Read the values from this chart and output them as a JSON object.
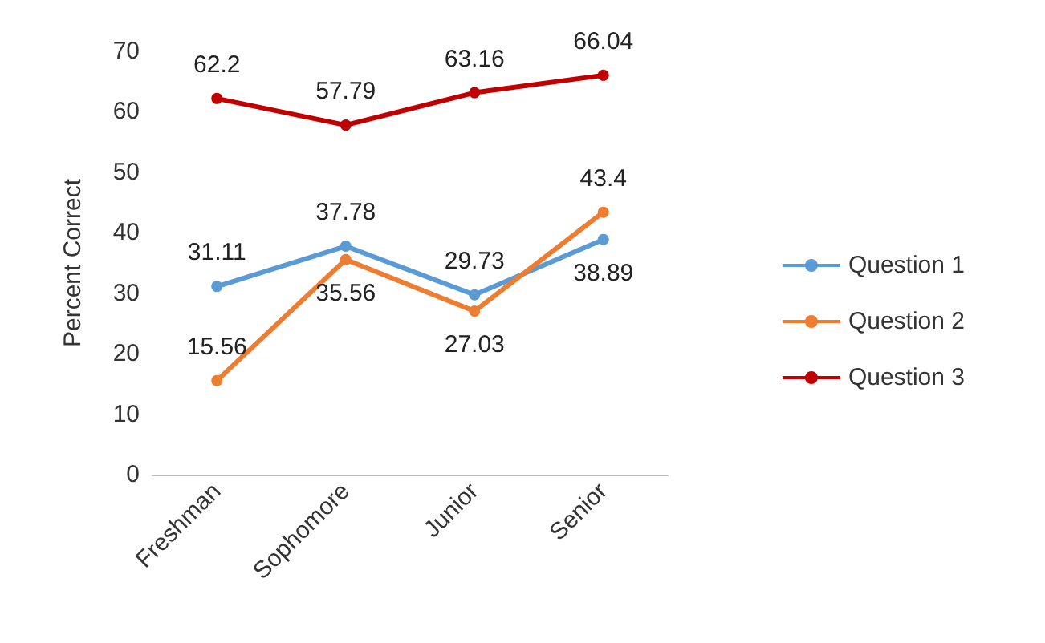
{
  "chart_data": {
    "type": "line",
    "ylabel": "Percent Correct",
    "categories": [
      "Freshman",
      "Sophomore",
      "Junior",
      "Senior"
    ],
    "series": [
      {
        "name": "Question 1",
        "color": "#5b9bd5",
        "values": [
          31.11,
          37.78,
          29.73,
          38.89
        ]
      },
      {
        "name": "Question 2",
        "color": "#ed7d31",
        "values": [
          15.56,
          35.56,
          27.03,
          43.4
        ]
      },
      {
        "name": "Question 3",
        "color": "#c00000",
        "values": [
          62.2,
          57.79,
          63.16,
          66.04
        ]
      }
    ],
    "ylim": [
      0,
      70
    ],
    "yticks": [
      0,
      10,
      20,
      30,
      40,
      50,
      60,
      70
    ],
    "grid": false,
    "legend": "right",
    "marker": "circle",
    "data_labels": true
  }
}
